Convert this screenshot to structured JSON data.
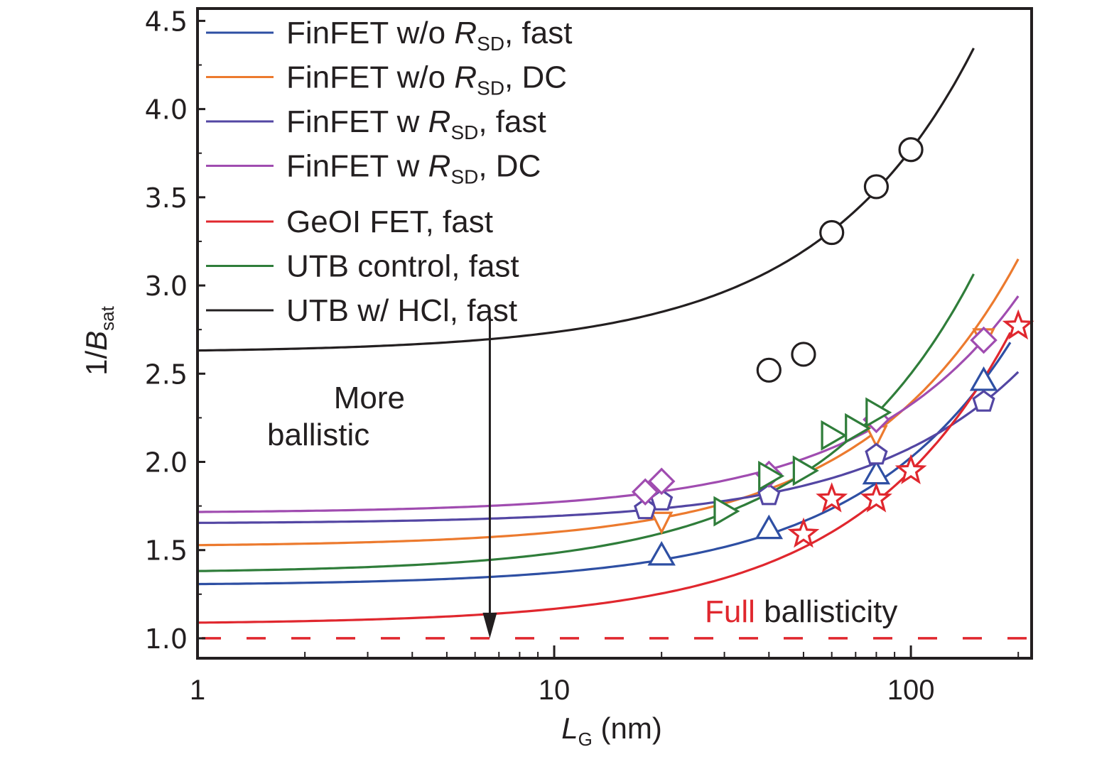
{
  "chart_data": {
    "type": "scatter",
    "title": "",
    "xlabel": {
      "main": "L",
      "sub": "G",
      "unit": " (nm)"
    },
    "ylabel": {
      "main": "1/B",
      "sub": "sat"
    },
    "xscale": "log",
    "xlim": [
      1,
      218
    ],
    "ylim": [
      0.887,
      4.57
    ],
    "x_ticks": [
      {
        "value": 1,
        "label": "1"
      },
      {
        "value": 10,
        "label": "10"
      },
      {
        "value": 100,
        "label": "100"
      }
    ],
    "y_ticks": [
      {
        "value": 1.0,
        "label": "1.0"
      },
      {
        "value": 1.5,
        "label": "1.5"
      },
      {
        "value": 2.0,
        "label": "2.0"
      },
      {
        "value": 2.5,
        "label": "2.5"
      },
      {
        "value": 3.0,
        "label": "3.0"
      },
      {
        "value": 3.5,
        "label": "3.5"
      },
      {
        "value": 4.0,
        "label": "4.0"
      },
      {
        "value": 4.5,
        "label": "4.5"
      }
    ],
    "grid": false,
    "legend_position": "top-left",
    "series": [
      {
        "name": "FinFET w/o R_SD, fast",
        "legend": {
          "pre": "FinFET w/o ",
          "italic": "R",
          "sub": "SD",
          "post": ", fast"
        },
        "color": "#2e4fa3",
        "marker": "triangle-up",
        "fit": {
          "intercept": 1.3,
          "slope": 0.00725,
          "x_end": 190
        },
        "points": [
          [
            20,
            1.47
          ],
          [
            40,
            1.62
          ],
          [
            80,
            1.93
          ],
          [
            160,
            2.46
          ]
        ]
      },
      {
        "name": "FinFET w/o R_SD, DC",
        "legend": {
          "pre": "FinFET w/o ",
          "italic": "R",
          "sub": "SD",
          "post": ", DC"
        },
        "color": "#ec7a2e",
        "marker": "triangle-down",
        "fit": {
          "intercept": 1.52,
          "slope": 0.00815,
          "x_end": 200
        },
        "points": [
          [
            20,
            1.67
          ],
          [
            80,
            2.16
          ],
          [
            160,
            2.71
          ]
        ]
      },
      {
        "name": "FinFET w R_SD, fast",
        "legend": {
          "pre": "FinFET w ",
          "italic": "R",
          "sub": "SD",
          "post": ", fast"
        },
        "color": "#5346a3",
        "marker": "pentagon",
        "fit": {
          "intercept": 1.65,
          "slope": 0.0043,
          "x_end": 200
        },
        "points": [
          [
            18,
            1.73
          ],
          [
            20,
            1.78
          ],
          [
            40,
            1.81
          ],
          [
            80,
            2.04
          ],
          [
            160,
            2.34
          ]
        ]
      },
      {
        "name": "FinFET w R_SD, DC",
        "legend": {
          "pre": "FinFET w ",
          "italic": "R",
          "sub": "SD",
          "post": ", DC"
        },
        "color": "#a04cb0",
        "marker": "diamond",
        "fit": {
          "intercept": 1.71,
          "slope": 0.00615,
          "x_end": 200
        },
        "points": [
          [
            18,
            1.83
          ],
          [
            20,
            1.89
          ],
          [
            40,
            1.93
          ],
          [
            80,
            2.24
          ],
          [
            160,
            2.69
          ]
        ]
      },
      {
        "name": "GeOI FET, fast",
        "legend": {
          "pre": "GeOI FET, fast",
          "italic": "",
          "sub": "",
          "post": ""
        },
        "color": "#e0272e",
        "marker": "star",
        "fit": {
          "intercept": 1.08,
          "slope": 0.0087,
          "x_end": 190
        },
        "points": [
          [
            50,
            1.59
          ],
          [
            60,
            1.79
          ],
          [
            80,
            1.79
          ],
          [
            100,
            1.95
          ],
          [
            200,
            2.77
          ]
        ]
      },
      {
        "name": "UTB control, fast",
        "legend": {
          "pre": "UTB control, fast",
          "italic": "",
          "sub": "",
          "post": ""
        },
        "color": "#2f7d3a",
        "marker": "triangle-right",
        "fit": {
          "intercept": 1.37,
          "slope": 0.0113,
          "x_end": 150
        },
        "points": [
          [
            30,
            1.72
          ],
          [
            40,
            1.92
          ],
          [
            50,
            1.95
          ],
          [
            60,
            2.15
          ],
          [
            70,
            2.19
          ],
          [
            80,
            2.28
          ]
        ]
      },
      {
        "name": "UTB w/ HCl, fast",
        "legend": {
          "pre": "UTB w/ HCl, fast",
          "italic": "",
          "sub": "",
          "post": ""
        },
        "color": "#231f20",
        "marker": "circle",
        "fit": {
          "intercept": 2.62,
          "slope": 0.0115,
          "x_end": 150
        },
        "points": [
          [
            60,
            3.3
          ],
          [
            80,
            3.56
          ],
          [
            100,
            3.77
          ],
          [
            40,
            2.52
          ],
          [
            50,
            2.61
          ]
        ]
      }
    ],
    "reference_line": {
      "y": 1.0,
      "color": "#e0272e",
      "style": "dashed"
    },
    "annotations": {
      "more_ballistic_line1": "More",
      "more_ballistic_line2": "ballistic",
      "arrow": {
        "x": 6.6,
        "from_y": 2.82,
        "to_y": 1.0
      },
      "full_ballisticity_red": "Full",
      "full_ballisticity_black": " ballisticity"
    }
  }
}
